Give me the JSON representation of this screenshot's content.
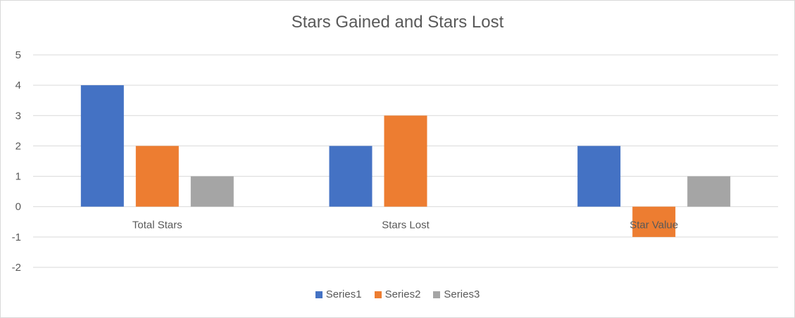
{
  "chart_data": {
    "type": "bar",
    "title": "Stars Gained and Stars Lost",
    "categories": [
      "Total Stars",
      "Stars Lost",
      "Star Value"
    ],
    "series": [
      {
        "name": "Series1",
        "color": "#4472c4",
        "values": [
          4,
          2,
          2
        ]
      },
      {
        "name": "Series2",
        "color": "#ed7d31",
        "values": [
          2,
          3,
          -1
        ]
      },
      {
        "name": "Series3",
        "color": "#a5a5a5",
        "values": [
          1,
          null,
          1
        ]
      }
    ],
    "ylim": [
      -2,
      5
    ],
    "yticks": [
      "5",
      "4",
      "3",
      "2",
      "1",
      "0",
      "-1",
      "-2"
    ],
    "grid": true,
    "legend_position": "bottom"
  }
}
